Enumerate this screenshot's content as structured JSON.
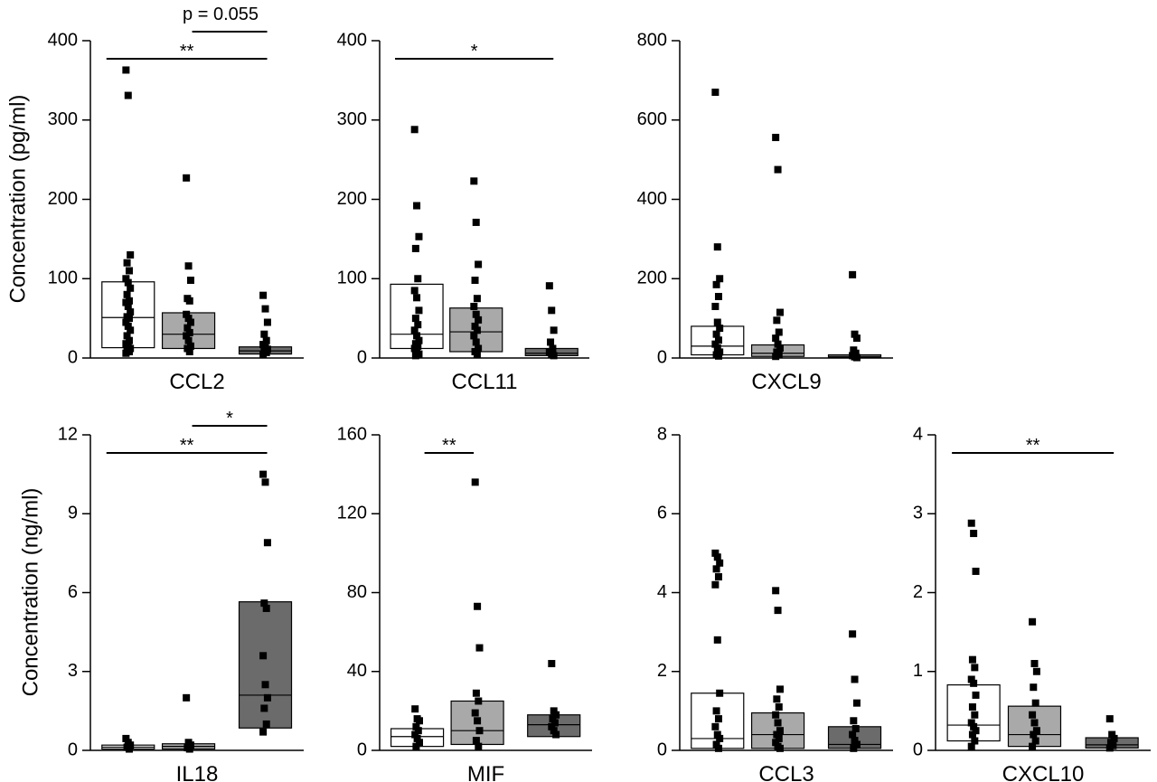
{
  "colors": {
    "white_group": "#ffffff",
    "light_group": "#a9a9a9",
    "dark_group": "#6b6b6b",
    "points": "#000000"
  },
  "row_ylabels": [
    "Concentration (pg/ml)",
    "Concentration (ng/ml)"
  ],
  "chart_data": [
    {
      "type": "box",
      "row": 0,
      "panel": 0,
      "category": "CCL2",
      "ylabel": "Concentration (pg/ml)",
      "ylim": [
        0,
        400
      ],
      "yticks": [
        "0",
        "100",
        "200",
        "300",
        "400"
      ],
      "grid": false,
      "boxes": [
        {
          "q1": 13,
          "median": 51,
          "q3": 96,
          "color": "#ffffff",
          "points": [
            363,
            331,
            130,
            120,
            110,
            100,
            95,
            88,
            80,
            72,
            70,
            65,
            58,
            52,
            50,
            45,
            40,
            35,
            28,
            22,
            18,
            15,
            12,
            10,
            8,
            6
          ]
        },
        {
          "q1": 12,
          "median": 30,
          "q3": 57,
          "color": "#a9a9a9",
          "points": [
            227,
            116,
            98,
            75,
            72,
            55,
            50,
            45,
            38,
            32,
            28,
            22,
            15,
            12,
            8
          ]
        },
        {
          "q1": 5,
          "median": 9,
          "q3": 14,
          "color": "#6b6b6b",
          "points": [
            79,
            62,
            45,
            30,
            22,
            17,
            13,
            11,
            9,
            7,
            5
          ]
        }
      ],
      "significance": [
        {
          "from": 0,
          "to": 2,
          "label": "**"
        },
        {
          "from": 1,
          "to": 2,
          "label": "p = 0.055"
        }
      ]
    },
    {
      "type": "box",
      "row": 0,
      "panel": 1,
      "category": "CCL11",
      "ylim": [
        0,
        400
      ],
      "yticks": [
        "0",
        "100",
        "200",
        "300",
        "400"
      ],
      "grid": false,
      "boxes": [
        {
          "q1": 12,
          "median": 30,
          "q3": 93,
          "color": "#ffffff",
          "points": [
            288,
            192,
            153,
            138,
            100,
            85,
            76,
            60,
            50,
            42,
            35,
            28,
            22,
            18,
            15,
            12,
            8,
            5,
            3
          ]
        },
        {
          "q1": 8,
          "median": 33,
          "q3": 63,
          "color": "#a9a9a9",
          "points": [
            223,
            171,
            118,
            98,
            75,
            65,
            55,
            48,
            40,
            35,
            28,
            20,
            12,
            8,
            5
          ]
        },
        {
          "q1": 3,
          "median": 6,
          "q3": 12,
          "color": "#6b6b6b",
          "points": [
            91,
            60,
            35,
            20,
            12,
            8,
            5,
            3
          ]
        }
      ],
      "significance": [
        {
          "from": 0,
          "to": 2,
          "label": "*"
        }
      ]
    },
    {
      "type": "box",
      "row": 0,
      "panel": 2,
      "category": "CXCL9",
      "ylim": [
        0,
        800
      ],
      "yticks": [
        "0",
        "200",
        "400",
        "600",
        "800"
      ],
      "grid": false,
      "boxes": [
        {
          "q1": 8,
          "median": 30,
          "q3": 80,
          "color": "#ffffff",
          "points": [
            670,
            280,
            200,
            185,
            155,
            130,
            90,
            75,
            60,
            45,
            35,
            25,
            15,
            8,
            5
          ]
        },
        {
          "q1": 4,
          "median": 12,
          "q3": 33,
          "color": "#a9a9a9",
          "points": [
            556,
            475,
            115,
            95,
            65,
            50,
            35,
            25,
            15,
            8,
            4
          ]
        },
        {
          "q1": 1,
          "median": 3,
          "q3": 8,
          "color": "#6b6b6b",
          "points": [
            210,
            60,
            50,
            20,
            12,
            6,
            3,
            1
          ]
        }
      ],
      "significance": []
    },
    {
      "type": "box",
      "row": 1,
      "panel": 0,
      "category": "IL18",
      "ylabel": "Concentration (ng/ml)",
      "ylim": [
        0,
        12
      ],
      "yticks": [
        "0",
        "3",
        "6",
        "9",
        "12"
      ],
      "grid": false,
      "boxes": [
        {
          "q1": 0.05,
          "median": 0.12,
          "q3": 0.2,
          "color": "#ffffff",
          "points": [
            0.45,
            0.3,
            0.2,
            0.12,
            0.05
          ]
        },
        {
          "q1": 0.05,
          "median": 0.15,
          "q3": 0.25,
          "color": "#a9a9a9",
          "points": [
            2.0,
            0.3,
            0.2,
            0.1,
            0.05
          ]
        },
        {
          "q1": 0.85,
          "median": 2.1,
          "q3": 5.65,
          "color": "#6b6b6b",
          "points": [
            10.5,
            10.2,
            7.9,
            5.6,
            5.4,
            3.6,
            2.5,
            2.0,
            1.6,
            1.0,
            0.7
          ]
        }
      ],
      "significance": [
        {
          "from": 0,
          "to": 2,
          "label": "**"
        },
        {
          "from": 1,
          "to": 2,
          "label": "*"
        }
      ]
    },
    {
      "type": "box",
      "row": 1,
      "panel": 1,
      "category": "MIF",
      "ylim": [
        0,
        160
      ],
      "yticks": [
        "0",
        "40",
        "80",
        "120",
        "160"
      ],
      "grid": false,
      "boxes": [
        {
          "q1": 2,
          "median": 7,
          "q3": 11,
          "color": "#ffffff",
          "points": [
            21,
            16,
            15,
            12,
            10,
            8,
            6,
            4,
            2
          ]
        },
        {
          "q1": 3,
          "median": 10,
          "q3": 25,
          "color": "#a9a9a9",
          "points": [
            136,
            73,
            52,
            29,
            25,
            19,
            15,
            10,
            5,
            2
          ]
        },
        {
          "q1": 7,
          "median": 13,
          "q3": 18,
          "color": "#6b6b6b",
          "points": [
            44,
            20,
            18,
            16,
            14,
            12,
            10,
            8
          ]
        }
      ],
      "significance": [
        {
          "from": 0,
          "to": 1,
          "label": "**"
        }
      ]
    },
    {
      "type": "box",
      "row": 1,
      "panel": 2,
      "category": "CCL3",
      "ylim": [
        0,
        8
      ],
      "yticks": [
        "0",
        "2",
        "4",
        "6",
        "8"
      ],
      "grid": false,
      "boxes": [
        {
          "q1": 0.05,
          "median": 0.3,
          "q3": 1.45,
          "color": "#ffffff",
          "points": [
            5.0,
            4.9,
            4.75,
            4.6,
            4.4,
            4.2,
            2.8,
            1.45,
            1.0,
            0.8,
            0.6,
            0.4,
            0.3,
            0.15,
            0.05
          ]
        },
        {
          "q1": 0.05,
          "median": 0.4,
          "q3": 0.95,
          "color": "#a9a9a9",
          "points": [
            4.05,
            3.55,
            1.55,
            1.3,
            1.1,
            0.9,
            0.7,
            0.5,
            0.4,
            0.3,
            0.2,
            0.1,
            0.05
          ]
        },
        {
          "q1": 0.05,
          "median": 0.15,
          "q3": 0.6,
          "color": "#6b6b6b",
          "points": [
            2.95,
            1.8,
            1.2,
            0.75,
            0.55,
            0.4,
            0.25,
            0.15,
            0.05
          ]
        }
      ],
      "significance": []
    },
    {
      "type": "box",
      "row": 1,
      "panel": 3,
      "category": "CXCL10",
      "ylim": [
        0,
        4
      ],
      "yticks": [
        "0",
        "1",
        "2",
        "3",
        "4"
      ],
      "grid": false,
      "boxes": [
        {
          "q1": 0.12,
          "median": 0.32,
          "q3": 0.83,
          "color": "#ffffff",
          "points": [
            2.88,
            2.75,
            2.27,
            1.15,
            1.05,
            0.9,
            0.85,
            0.7,
            0.55,
            0.45,
            0.35,
            0.3,
            0.25,
            0.2,
            0.12,
            0.05
          ]
        },
        {
          "q1": 0.05,
          "median": 0.2,
          "q3": 0.56,
          "color": "#a9a9a9",
          "points": [
            1.63,
            1.1,
            1.0,
            0.8,
            0.6,
            0.45,
            0.35,
            0.25,
            0.2,
            0.12,
            0.05
          ]
        },
        {
          "q1": 0.03,
          "median": 0.07,
          "q3": 0.16,
          "color": "#6b6b6b",
          "points": [
            0.4,
            0.2,
            0.15,
            0.1,
            0.06,
            0.03
          ]
        }
      ],
      "significance": [
        {
          "from": 0,
          "to": 2,
          "label": "**"
        }
      ]
    }
  ]
}
